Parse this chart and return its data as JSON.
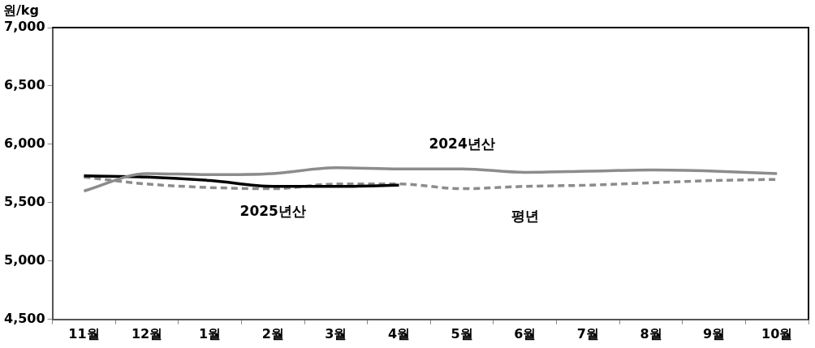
{
  "chart_data": {
    "type": "line",
    "ylabel": "원/kg",
    "categories": [
      "11월",
      "12월",
      "1월",
      "2월",
      "3월",
      "4월",
      "5월",
      "6월",
      "7월",
      "8월",
      "9월",
      "10월"
    ],
    "series": [
      {
        "name": "2024년산",
        "color": "#8c8c8c",
        "line_style": "solid",
        "values": [
          5600,
          5750,
          5740,
          5750,
          5800,
          5790,
          5790,
          5760,
          5770,
          5780,
          5770,
          5750
        ]
      },
      {
        "name": "2025년산",
        "color": "#000000",
        "line_style": "solid",
        "values": [
          5730,
          5720,
          5690,
          5640,
          5640,
          5650,
          null,
          null,
          null,
          null,
          null,
          null
        ]
      },
      {
        "name": "평년",
        "color": "#8c8c8c",
        "line_style": "dashed",
        "values": [
          5720,
          5660,
          5630,
          5620,
          5660,
          5660,
          5620,
          5640,
          5650,
          5670,
          5690,
          5700
        ]
      }
    ],
    "ylim": [
      4500,
      7000
    ],
    "yticks": [
      {
        "value": 4500,
        "label": "4,500"
      },
      {
        "value": 5000,
        "label": "5,000"
      },
      {
        "value": 5500,
        "label": "5,500"
      },
      {
        "value": 6000,
        "label": "6,000"
      },
      {
        "value": 6500,
        "label": "6,500"
      },
      {
        "value": 7000,
        "label": "7,000"
      }
    ],
    "grid": false,
    "legend": false,
    "marker": "none"
  }
}
